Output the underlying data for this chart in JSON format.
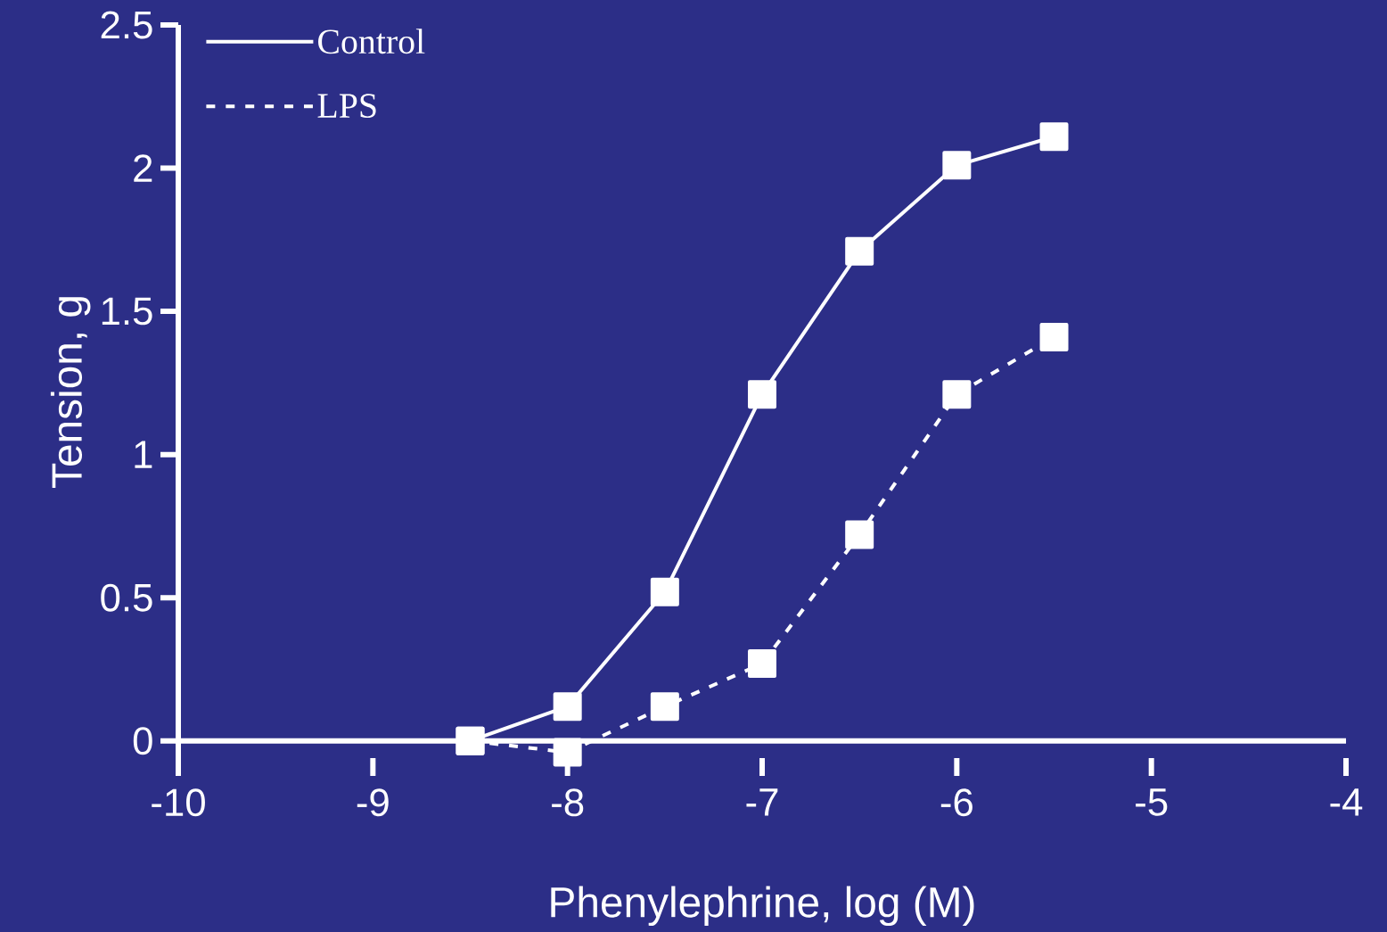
{
  "chart_data": {
    "type": "line",
    "xlabel": "Phenylephrine, log (M)",
    "ylabel": "Tension, g",
    "xlim": [
      -10,
      -4
    ],
    "xticks": [
      -10,
      -9,
      -8,
      -7,
      -6,
      -5,
      -4
    ],
    "ylim": [
      -0.06,
      2.5
    ],
    "yticks": [
      0,
      0.5,
      1,
      1.5,
      2,
      2.5
    ],
    "marker": "square",
    "legend": "top left",
    "grid": false,
    "series": [
      {
        "name": "Control",
        "color": "#ffffff",
        "line_style": "solid",
        "x": [
          -8.5,
          -8,
          -7.5,
          -7,
          -6.5,
          -6,
          -5.5
        ],
        "values": [
          0,
          0.12,
          0.52,
          1.21,
          1.71,
          2.01,
          2.11
        ]
      },
      {
        "name": "LPS",
        "color": "#ffffff",
        "line_style": "dashed",
        "x": [
          -8.5,
          -8,
          -7.5,
          -7,
          -6.5,
          -6,
          -5.5
        ],
        "values": [
          0,
          -0.04,
          0.12,
          0.27,
          0.72,
          1.21,
          1.41
        ]
      }
    ]
  }
}
